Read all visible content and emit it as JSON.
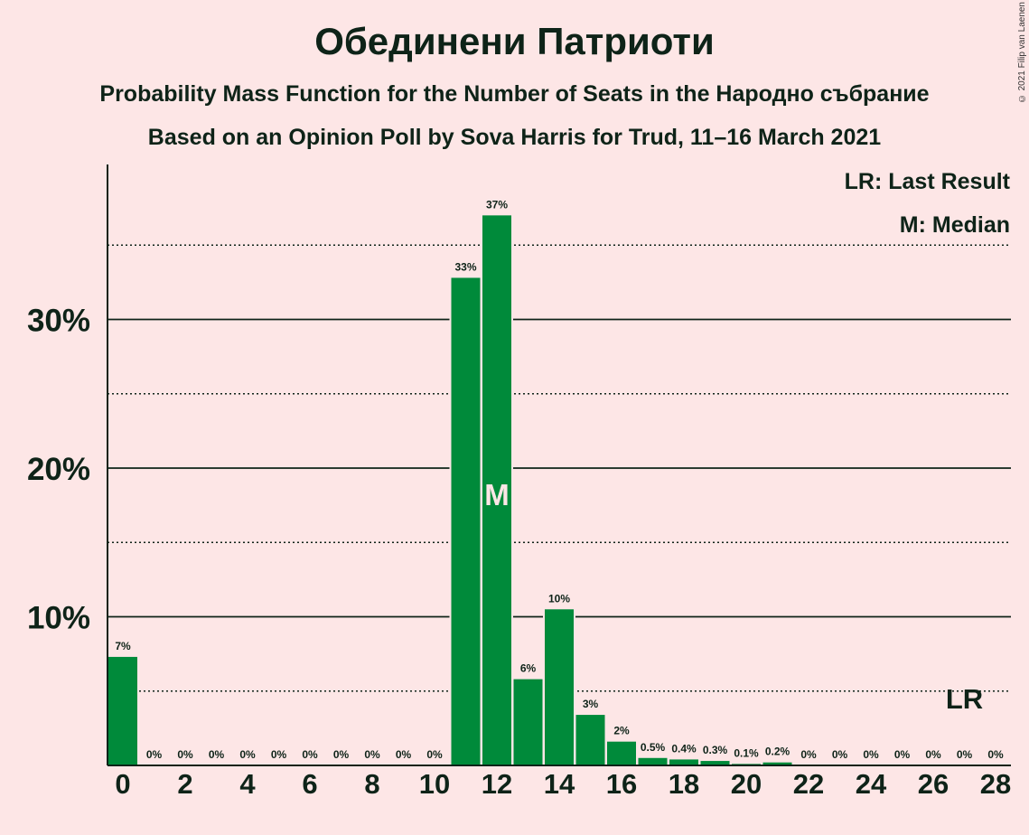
{
  "title": "Обединени Патриоти",
  "subtitle_line1": "Probability Mass Function for the Number of Seats in the Народно събрание",
  "subtitle_line2": "Based on an Opinion Poll by Sova Harris for Trud, 11–16 March 2021",
  "copyright": "© 2021 Filip van Laenen",
  "colors": {
    "background": "#fde6e6",
    "bar": "#008a3a",
    "text": "#0e2318",
    "bar_label_inside": "#fde6e6"
  },
  "chart_data": {
    "type": "bar",
    "x": [
      0,
      1,
      2,
      3,
      4,
      5,
      6,
      7,
      8,
      9,
      10,
      11,
      12,
      13,
      14,
      15,
      16,
      17,
      18,
      19,
      20,
      21,
      22,
      23,
      24,
      25,
      26,
      27,
      28
    ],
    "values": [
      7.3,
      0,
      0,
      0,
      0,
      0,
      0,
      0,
      0,
      0,
      0,
      32.8,
      37,
      5.8,
      10.5,
      3.4,
      1.6,
      0.5,
      0.4,
      0.3,
      0.1,
      0.2,
      0,
      0,
      0,
      0,
      0,
      0,
      0
    ],
    "value_labels": [
      "7%",
      "0%",
      "0%",
      "0%",
      "0%",
      "0%",
      "0%",
      "0%",
      "0%",
      "0%",
      "0%",
      "33%",
      "37%",
      "6%",
      "10%",
      "3%",
      "2%",
      "0.5%",
      "0.4%",
      "0.3%",
      "0.1%",
      "0.2%",
      "0%",
      "0%",
      "0%",
      "0%",
      "0%",
      "0%",
      "0%"
    ],
    "x_tick_labels": [
      "0",
      "2",
      "4",
      "6",
      "8",
      "10",
      "12",
      "14",
      "16",
      "18",
      "20",
      "22",
      "24",
      "26",
      "28"
    ],
    "x_ticks": [
      0,
      2,
      4,
      6,
      8,
      10,
      12,
      14,
      16,
      18,
      20,
      22,
      24,
      26,
      28
    ],
    "y_major_ticks": [
      10,
      20,
      30
    ],
    "y_tick_labels": [
      "10%",
      "20%",
      "30%"
    ],
    "y_minor_ticks": [
      5,
      15,
      25,
      35
    ],
    "ylim": [
      0,
      40.5
    ],
    "median": 12,
    "median_label": "M",
    "last_result": 27,
    "last_result_label": "LR",
    "legend": [
      "LR: Last Result",
      "M: Median"
    ],
    "legend_position": "top-right",
    "grid": true
  }
}
